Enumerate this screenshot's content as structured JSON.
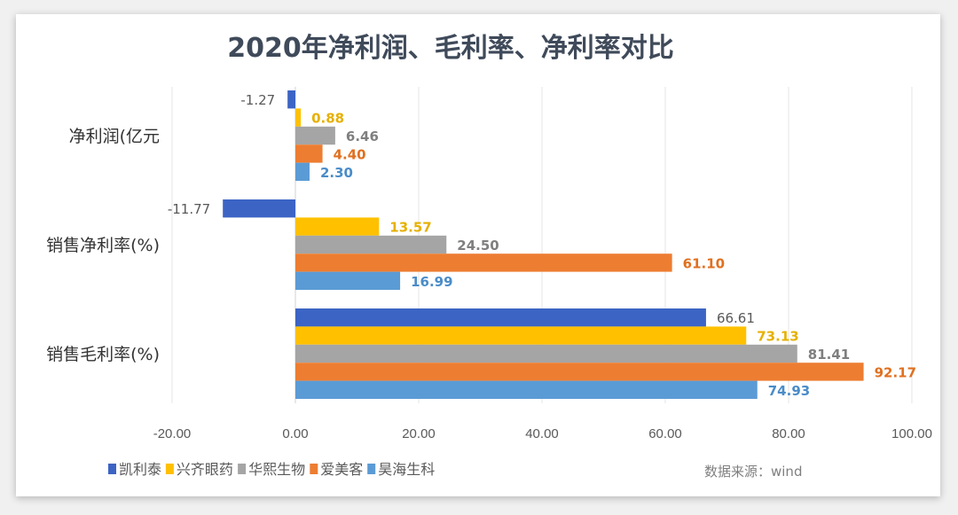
{
  "chart_data": {
    "type": "bar",
    "orientation": "horizontal",
    "title": "2020年净利润、毛利率、净利率对比",
    "categories": [
      "净利润(亿元",
      "销售净利率(%)",
      "销售毛利率(%)"
    ],
    "series": [
      {
        "name": "凯利泰",
        "color": "#3c64c4",
        "values": [
          -1.27,
          -11.77,
          66.61
        ]
      },
      {
        "name": "兴齐眼药",
        "color": "#ffc000",
        "values": [
          0.88,
          13.57,
          73.13
        ]
      },
      {
        "name": "华熙生物",
        "color": "#a5a5a5",
        "values": [
          6.46,
          24.5,
          81.41
        ]
      },
      {
        "name": "爱美客",
        "color": "#ed7d31",
        "values": [
          4.4,
          61.1,
          92.17
        ]
      },
      {
        "name": "昊海生科",
        "color": "#5b9bd5",
        "values": [
          2.3,
          16.99,
          74.93
        ]
      }
    ],
    "label_colors": [
      "#595959",
      "#e6b000",
      "#7f7f7f",
      "#e07020",
      "#4a8cc8"
    ],
    "xlim": [
      -20,
      100
    ],
    "xticks": [
      "-20.00",
      "0.00",
      "20.00",
      "40.00",
      "60.00",
      "80.00",
      "100.00"
    ],
    "xtick_values": [
      -20,
      0,
      20,
      40,
      60,
      80,
      100
    ],
    "grid": true,
    "legend_position": "bottom-left",
    "source_note": "数据来源：wind"
  }
}
